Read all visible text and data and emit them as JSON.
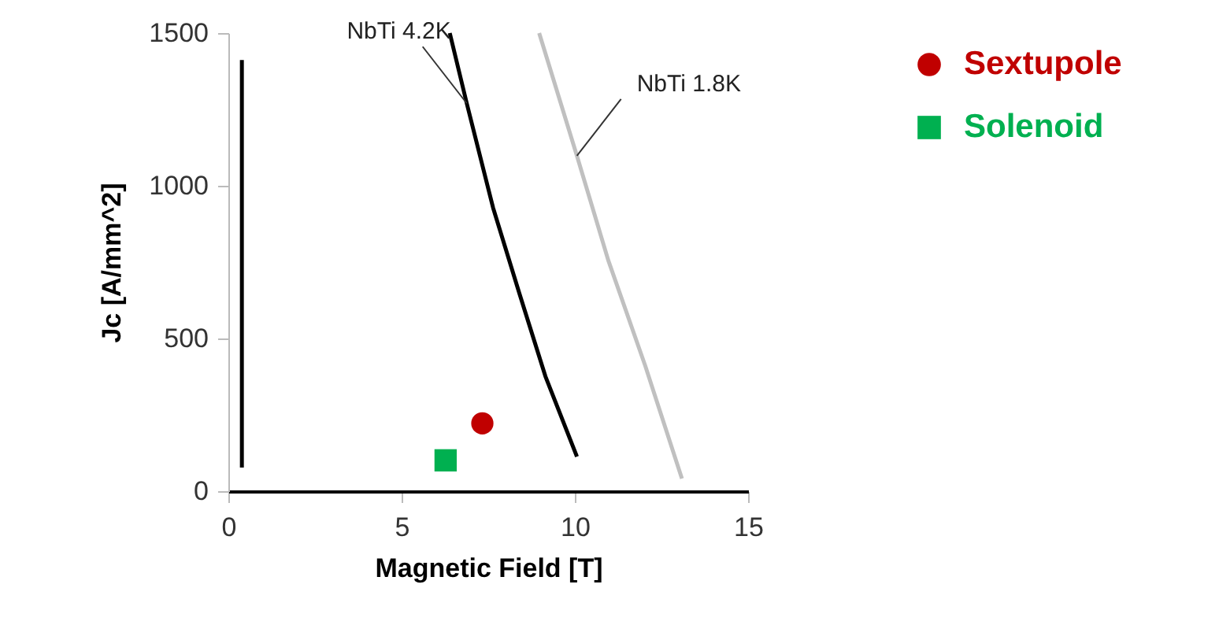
{
  "chart_data": {
    "type": "line",
    "xlabel": "Magnetic Field [T]",
    "ylabel": "Jc [A/mm^2]",
    "xlim": [
      0,
      15
    ],
    "xticks": [
      0,
      5,
      10,
      15
    ],
    "ylim": [
      0,
      1500
    ],
    "yticks": [
      0,
      500,
      1000,
      1500
    ],
    "grid": false,
    "legend": "right",
    "series": [
      {
        "color": "#000000",
        "x": [
          0.39,
          0.39
        ],
        "values": [
          77,
          1412
        ]
      },
      {
        "color": "#000000",
        "x": [
          6.39,
          6.88,
          7.64,
          8.39,
          9.15,
          10.06
        ],
        "values": [
          1500,
          1270,
          928,
          651,
          376,
          113
        ]
      },
      {
        "color": "#c0c0c0",
        "x": [
          8.97,
          10.06,
          10.97,
          12.03,
          13.09
        ],
        "values": [
          1500,
          1098,
          754,
          411,
          41
        ]
      },
      {
        "name": "Sextupole",
        "type": "scatter",
        "marker": "circle",
        "color": "#c00000",
        "x": [
          7.33
        ],
        "values": [
          222
        ]
      },
      {
        "name": "Solenoid",
        "type": "scatter",
        "marker": "square",
        "color": "#00b050",
        "x": [
          6.27
        ],
        "values": [
          101
        ]
      }
    ],
    "annotations": [
      {
        "text": "NbTi 4.2K",
        "x": 6.88,
        "y": 1270
      },
      {
        "text": "NbTi  1.8K",
        "x": 10.06,
        "y": 1098
      }
    ]
  }
}
